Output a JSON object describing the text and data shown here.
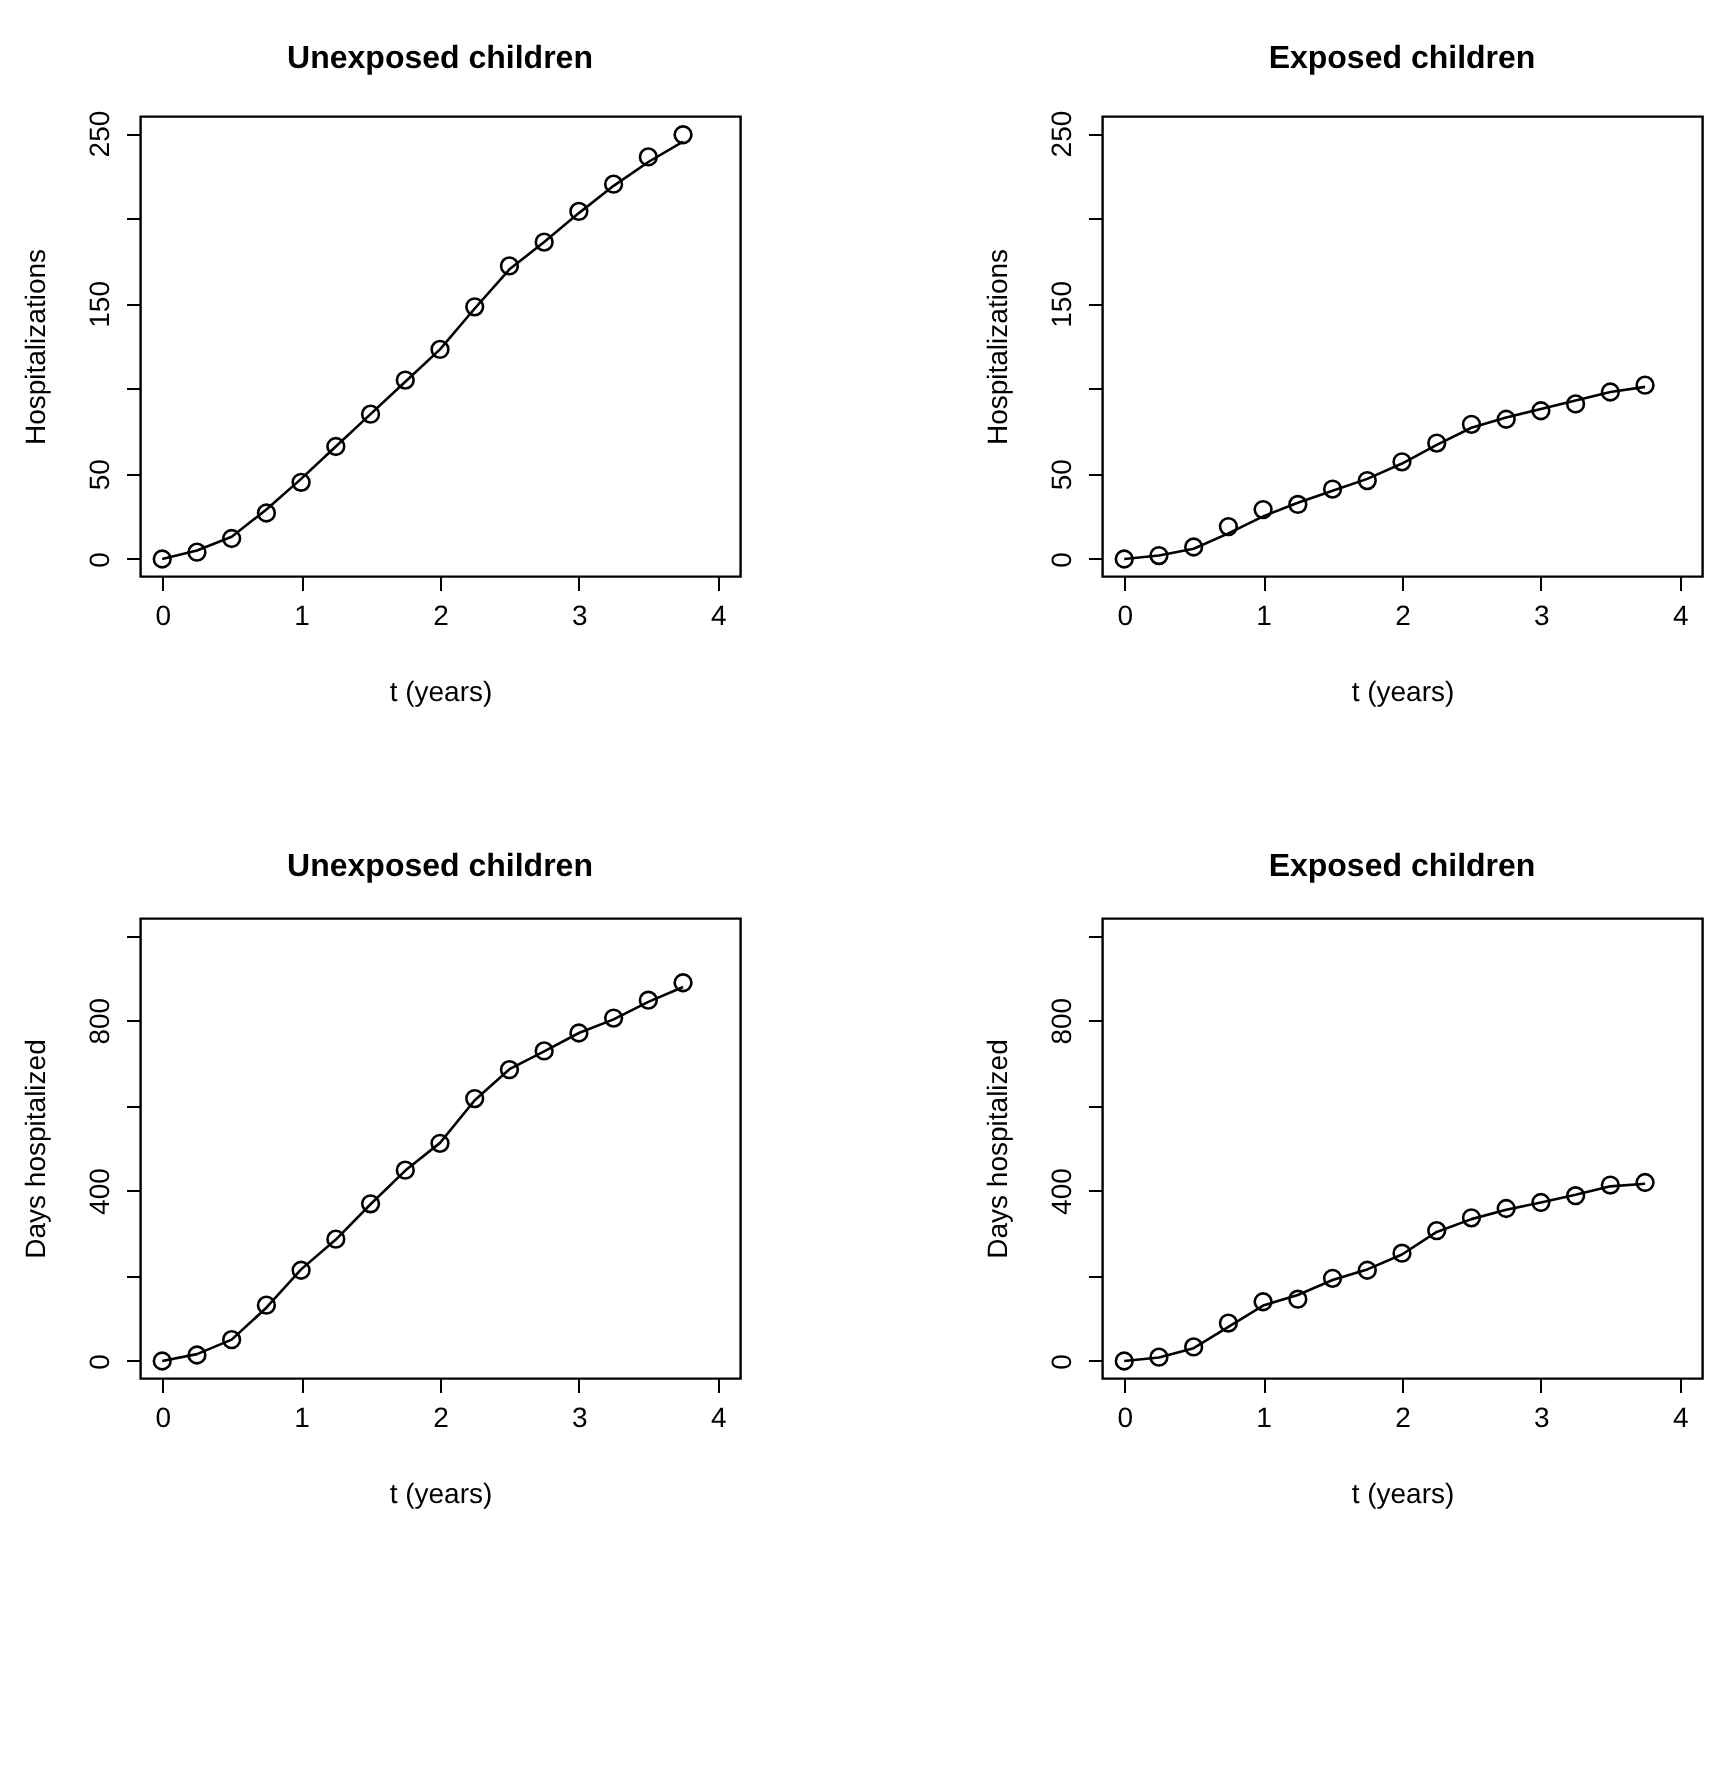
{
  "chart_data": [
    {
      "type": "scatter",
      "title": "Unexposed children",
      "xlabel": "t (years)",
      "ylabel": "Hospitalizations",
      "x": [
        0,
        0.25,
        0.5,
        0.75,
        1,
        1.25,
        1.5,
        1.75,
        2,
        2.25,
        2.5,
        2.75,
        3,
        3.25,
        3.5,
        3.75
      ],
      "xlim": [
        -0.16,
        4.16
      ],
      "xticks": [
        0,
        1,
        2,
        3,
        4
      ],
      "ylim": [
        -10,
        260
      ],
      "yticks": [
        0,
        50,
        {
          "value": 100,
          "label": null
        },
        150,
        {
          "value": 200,
          "label": null
        },
        250
      ],
      "grid": false,
      "series": [
        {
          "color": "#000000",
          "marker": "circle",
          "values": [
            0,
            4,
            12,
            27,
            45,
            66,
            85,
            105,
            123,
            148,
            172,
            186,
            204,
            220,
            236,
            249
          ]
        },
        {
          "type": "line",
          "color": "#000000",
          "values": [
            0,
            5,
            13,
            29,
            47,
            66,
            85,
            104,
            123,
            147,
            170,
            186,
            203,
            219,
            233,
            245
          ]
        }
      ]
    },
    {
      "type": "scatter",
      "title": "Exposed children",
      "xlabel": "t (years)",
      "ylabel": "Hospitalizations",
      "x": [
        0,
        0.25,
        0.5,
        0.75,
        1,
        1.25,
        1.5,
        1.75,
        2,
        2.25,
        2.5,
        2.75,
        3,
        3.25,
        3.5,
        3.75
      ],
      "xlim": [
        -0.16,
        4.16
      ],
      "xticks": [
        0,
        1,
        2,
        3,
        4
      ],
      "ylim": [
        -10,
        260
      ],
      "yticks": [
        0,
        50,
        {
          "value": 100,
          "label": null
        },
        150,
        {
          "value": 200,
          "label": null
        },
        250
      ],
      "grid": false,
      "series": [
        {
          "color": "#000000",
          "marker": "circle",
          "values": [
            0,
            2,
            7,
            19,
            29,
            32,
            41,
            46,
            57,
            68,
            79,
            82,
            87,
            91,
            98,
            102
          ]
        },
        {
          "type": "line",
          "color": "#000000",
          "values": [
            0,
            2,
            6,
            15,
            25,
            33,
            40,
            47,
            56,
            67,
            77,
            83,
            88,
            93,
            98,
            101
          ]
        }
      ]
    },
    {
      "type": "scatter",
      "title": "Unexposed children",
      "xlabel": "t (years)",
      "ylabel": "Days hospitalized",
      "x": [
        0,
        0.25,
        0.5,
        0.75,
        1,
        1.25,
        1.5,
        1.75,
        2,
        2.25,
        2.5,
        2.75,
        3,
        3.25,
        3.5,
        3.75
      ],
      "xlim": [
        -0.16,
        4.16
      ],
      "xticks": [
        0,
        1,
        2,
        3,
        4
      ],
      "ylim": [
        -40,
        1040
      ],
      "yticks": [
        0,
        {
          "value": 200,
          "label": null
        },
        400,
        {
          "value": 600,
          "label": null
        },
        800,
        {
          "value": 1000,
          "label": null
        }
      ],
      "grid": false,
      "series": [
        {
          "color": "#000000",
          "marker": "circle",
          "values": [
            0,
            14,
            50,
            131,
            213,
            286,
            369,
            448,
            511,
            616,
            684,
            728,
            770,
            805,
            847,
            888
          ]
        },
        {
          "type": "line",
          "color": "#000000",
          "values": [
            0,
            16,
            50,
            125,
            215,
            285,
            368,
            447,
            512,
            612,
            685,
            727,
            770,
            802,
            843,
            878
          ]
        }
      ]
    },
    {
      "type": "scatter",
      "title": "Exposed children",
      "xlabel": "t (years)",
      "ylabel": "Days hospitalized",
      "x": [
        0,
        0.25,
        0.5,
        0.75,
        1,
        1.25,
        1.5,
        1.75,
        2,
        2.25,
        2.5,
        2.75,
        3,
        3.25,
        3.5,
        3.75
      ],
      "xlim": [
        -0.16,
        4.16
      ],
      "xticks": [
        0,
        1,
        2,
        3,
        4
      ],
      "ylim": [
        -40,
        1040
      ],
      "yticks": [
        0,
        {
          "value": 200,
          "label": null
        },
        400,
        {
          "value": 600,
          "label": null
        },
        800,
        {
          "value": 1000,
          "label": null
        }
      ],
      "grid": false,
      "series": [
        {
          "color": "#000000",
          "marker": "circle",
          "values": [
            0,
            9,
            33,
            89,
            139,
            145,
            194,
            213,
            253,
            306,
            336,
            358,
            372,
            388,
            413,
            419
          ]
        },
        {
          "type": "line",
          "color": "#000000",
          "values": [
            0,
            8,
            30,
            80,
            130,
            155,
            190,
            215,
            250,
            303,
            333,
            355,
            372,
            390,
            410,
            416
          ]
        }
      ]
    }
  ]
}
